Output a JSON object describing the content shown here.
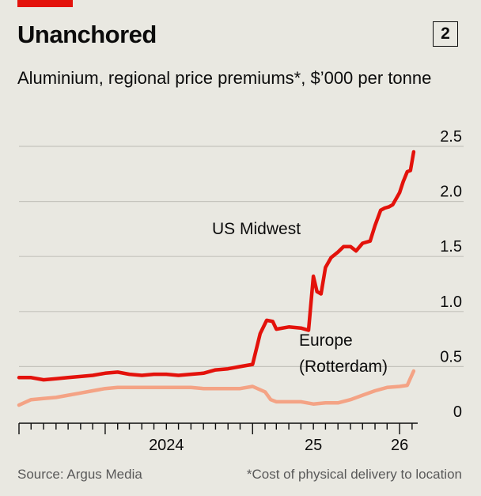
{
  "header": {
    "title": "Unanchored",
    "chart_number": "2",
    "subtitle": "Aluminium, regional price premiums*, $’000 per tonne"
  },
  "footer": {
    "source": "Source: Argus Media",
    "footnote": "*Cost of physical delivery to location"
  },
  "colors": {
    "us_midwest": "#e3120b",
    "europe": "#f4a385",
    "background": "#e9e8e1",
    "grid": "#c4c3bc"
  },
  "chart_data": {
    "type": "line",
    "title": "Unanchored",
    "subtitle": "Aluminium, regional price premiums*, $’000 per tonne",
    "xlabel": "",
    "ylabel": "",
    "ylim": [
      0,
      2.5
    ],
    "yticks": [
      0,
      0.5,
      1.0,
      1.5,
      2.0,
      2.5
    ],
    "ytick_labels": [
      "0",
      "0.5",
      "1.0",
      "1.5",
      "2.0",
      "2.5"
    ],
    "x_start": "2023-06",
    "x_end": "2026-02",
    "x_ticks": [
      "2023-06",
      "2023-07",
      "2023-08",
      "2023-09",
      "2023-10",
      "2023-11",
      "2023-12",
      "2024-01",
      "2024-02",
      "2024-03",
      "2024-04",
      "2024-05",
      "2024-06",
      "2024-07",
      "2024-08",
      "2024-09",
      "2024-10",
      "2024-11",
      "2024-12",
      "2025-01",
      "2025-02",
      "2025-03",
      "2025-04",
      "2025-05",
      "2025-06",
      "2025-07",
      "2025-08",
      "2025-09",
      "2025-10",
      "2025-11",
      "2025-12",
      "2026-01",
      "2026-02"
    ],
    "x_labels": [
      {
        "label": "2024",
        "date": "2024-06"
      },
      {
        "label": "25",
        "date": "2025-06"
      },
      {
        "label": "26",
        "date": "2026-01"
      }
    ],
    "grid": true,
    "series": [
      {
        "name": "US Midwest",
        "label": "US Midwest",
        "color": "#e3120b",
        "points": [
          [
            "2023-06-01",
            0.4
          ],
          [
            "2023-07-01",
            0.4
          ],
          [
            "2023-08-01",
            0.38
          ],
          [
            "2023-09-01",
            0.39
          ],
          [
            "2023-10-01",
            0.4
          ],
          [
            "2023-11-01",
            0.41
          ],
          [
            "2023-12-01",
            0.42
          ],
          [
            "2024-01-01",
            0.44
          ],
          [
            "2024-02-01",
            0.45
          ],
          [
            "2024-03-01",
            0.43
          ],
          [
            "2024-04-01",
            0.42
          ],
          [
            "2024-05-01",
            0.43
          ],
          [
            "2024-06-01",
            0.43
          ],
          [
            "2024-07-01",
            0.42
          ],
          [
            "2024-08-01",
            0.43
          ],
          [
            "2024-09-01",
            0.44
          ],
          [
            "2024-10-01",
            0.47
          ],
          [
            "2024-11-01",
            0.48
          ],
          [
            "2024-12-01",
            0.5
          ],
          [
            "2025-01-01",
            0.52
          ],
          [
            "2025-01-20",
            0.8
          ],
          [
            "2025-02-05",
            0.92
          ],
          [
            "2025-02-20",
            0.91
          ],
          [
            "2025-03-01",
            0.84
          ],
          [
            "2025-04-01",
            0.86
          ],
          [
            "2025-05-01",
            0.85
          ],
          [
            "2025-05-20",
            0.83
          ],
          [
            "2025-06-01",
            1.32
          ],
          [
            "2025-06-10",
            1.18
          ],
          [
            "2025-06-20",
            1.16
          ],
          [
            "2025-07-01",
            1.4
          ],
          [
            "2025-07-15",
            1.49
          ],
          [
            "2025-08-01",
            1.54
          ],
          [
            "2025-08-15",
            1.59
          ],
          [
            "2025-09-01",
            1.59
          ],
          [
            "2025-09-15",
            1.55
          ],
          [
            "2025-10-01",
            1.62
          ],
          [
            "2025-10-20",
            1.64
          ],
          [
            "2025-11-01",
            1.78
          ],
          [
            "2025-11-15",
            1.92
          ],
          [
            "2025-11-25",
            1.94
          ],
          [
            "2025-12-05",
            1.95
          ],
          [
            "2025-12-15",
            1.97
          ],
          [
            "2026-01-01",
            2.08
          ],
          [
            "2026-01-10",
            2.18
          ],
          [
            "2026-01-20",
            2.27
          ],
          [
            "2026-01-28",
            2.28
          ],
          [
            "2026-02-05",
            2.45
          ]
        ]
      },
      {
        "name": "Europe (Rotterdam)",
        "label": [
          "Europe",
          "(Rotterdam)"
        ],
        "color": "#f4a385",
        "points": [
          [
            "2023-06-01",
            0.15
          ],
          [
            "2023-07-01",
            0.2
          ],
          [
            "2023-08-01",
            0.21
          ],
          [
            "2023-09-01",
            0.22
          ],
          [
            "2023-10-01",
            0.24
          ],
          [
            "2023-11-01",
            0.26
          ],
          [
            "2023-12-01",
            0.28
          ],
          [
            "2024-01-01",
            0.3
          ],
          [
            "2024-02-01",
            0.31
          ],
          [
            "2024-03-01",
            0.31
          ],
          [
            "2024-04-01",
            0.31
          ],
          [
            "2024-05-01",
            0.31
          ],
          [
            "2024-06-01",
            0.31
          ],
          [
            "2024-07-01",
            0.31
          ],
          [
            "2024-08-01",
            0.31
          ],
          [
            "2024-09-01",
            0.3
          ],
          [
            "2024-10-01",
            0.3
          ],
          [
            "2024-11-01",
            0.3
          ],
          [
            "2024-12-01",
            0.3
          ],
          [
            "2025-01-01",
            0.32
          ],
          [
            "2025-02-01",
            0.27
          ],
          [
            "2025-02-15",
            0.2
          ],
          [
            "2025-03-01",
            0.18
          ],
          [
            "2025-04-01",
            0.18
          ],
          [
            "2025-05-01",
            0.18
          ],
          [
            "2025-06-01",
            0.16
          ],
          [
            "2025-07-01",
            0.17
          ],
          [
            "2025-08-01",
            0.17
          ],
          [
            "2025-09-01",
            0.2
          ],
          [
            "2025-10-01",
            0.24
          ],
          [
            "2025-11-01",
            0.28
          ],
          [
            "2025-12-01",
            0.31
          ],
          [
            "2026-01-01",
            0.32
          ],
          [
            "2026-01-20",
            0.33
          ],
          [
            "2026-02-05",
            0.46
          ]
        ]
      }
    ]
  }
}
